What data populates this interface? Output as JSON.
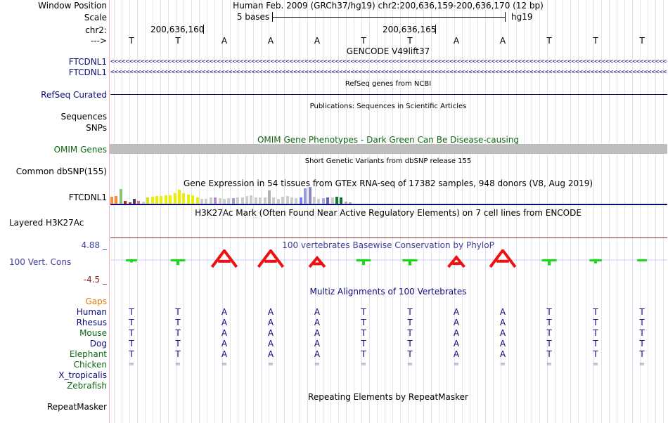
{
  "header": {
    "window_position_label": "Window Position",
    "scale_label": "Scale",
    "chrom_label": "chr2:",
    "strand_label": "--->",
    "assembly_title": "Human Feb. 2009 (GRCh37/hg19)   chr2:200,636,159-200,636,170 (12 bp)",
    "scale_text": "5 bases",
    "scale_db": "hg19",
    "pos_tick_1": "200,636,160",
    "pos_tick_2": "200,636,165"
  },
  "bases": [
    "T",
    "T",
    "A",
    "A",
    "A",
    "T",
    "T",
    "A",
    "A",
    "T",
    "T",
    "T"
  ],
  "tracks": {
    "gencode_title": "GENCODE V49lift37",
    "gencode_gene_1": "FTCDNL1",
    "gencode_gene_2": "FTCDNL1",
    "arrows": "<<<<<<<<<<<<<<<<<<<<<<<<<<<<<<<<<<<<<<<<<<<<<<<<<<<<<<<<<<<<<<<<<<<<<<<<<<<<<<<<<<<<<<<<<<<<<<<<<<<<<<<<<<<<<<<<<<<<<<<<<<<<<<<<<<<<<<<<<<<<<<<<<<<<<<<<<<<<<<<<<<<<<<<",
    "refseq_title": "RefSeq genes from NCBI",
    "refseq_label": "RefSeq Curated",
    "pubs_title": "Publications: Sequences in Scientific Articles",
    "sequences_label": "Sequences",
    "snps_label": "SNPs",
    "omim_title": "OMIM Gene Phenotypes - Dark Green Can Be Disease-causing",
    "omim_label": "OMIM Genes",
    "dbsnp_title": "Short Genetic Variants from dbSNP release 155",
    "dbsnp_label": "Common dbSNP(155)",
    "gtex_title": "Gene Expression in 54 tissues from GTEx RNA-seq of 17382 samples, 948 donors (V8, Aug 2019)",
    "gtex_label": "FTCDNL1",
    "h3k27_title": "H3K27Ac Mark (Often Found Near Active Regulatory Elements) on 7 cell lines from ENCODE",
    "h3k27_label": "Layered H3K27Ac",
    "phylop_title": "100 vertebrates Basewise Conservation by PhyloP",
    "phylop_label": "100 Vert. Cons",
    "phylop_max": "4.88 _",
    "phylop_min": "-4.5 _",
    "multiz_title": "Multiz Alignments of 100 Vertebrates",
    "gaps_label": "Gaps",
    "repeat_title": "Repeating Elements by RepeatMasker",
    "repeat_label": "RepeatMasker"
  },
  "gtex_values": [
    9,
    10,
    19,
    4,
    2,
    6,
    4,
    3,
    8,
    9,
    10,
    10,
    11,
    11,
    14,
    18,
    14,
    12,
    11,
    8,
    6,
    6,
    8,
    8,
    7,
    6,
    7,
    7,
    8,
    8,
    10,
    11,
    8,
    8,
    8,
    17,
    8,
    6,
    9,
    10,
    8,
    7,
    8,
    20,
    22,
    9,
    6,
    7,
    8,
    8,
    9,
    8,
    3,
    2
  ],
  "gtex_colors": [
    "#ff8c33",
    "#ff8c33",
    "#88c278",
    "#bb2222",
    "#bb2222",
    "#444466",
    "#ee6688",
    "#cccccc",
    "#dddd22",
    "#eeee00",
    "#eeee00",
    "#eeee00",
    "#eeee00",
    "#eeee00",
    "#eeee00",
    "#eeee00",
    "#eeee00",
    "#eeee00",
    "#eeee00",
    "#eeee00",
    "#cccccc",
    "#cccccc",
    "#cccccc",
    "#b090cc",
    "#cccccc",
    "#cccccc",
    "#cccccc",
    "#a0a0c8",
    "#cccccc",
    "#cccccc",
    "#cccccc",
    "#cccccc",
    "#cccccc",
    "#cccccc",
    "#cccccc",
    "#b0b0b0",
    "#cccccc",
    "#cccccc",
    "#cccccc",
    "#cccccc",
    "#cccccc",
    "#cccccc",
    "#7777ff",
    "#9999dd",
    "#8888cc",
    "#cccccc",
    "#cccccc",
    "#aaaaee",
    "#6666aa",
    "#cccccc",
    "#117733",
    "#117733",
    "#cc99cc",
    "#aaaaaa"
  ],
  "phylop_scores": [
    1.1,
    2.0,
    4.7,
    4.7,
    2.2,
    2.0,
    2.1,
    2.4,
    4.8,
    2.1,
    1.4,
    0.7
  ],
  "phylop_colors": [
    "#11dd11",
    "#11dd11",
    "#ee1111",
    "#ee1111",
    "#ee1111",
    "#11dd11",
    "#11dd11",
    "#ee1111",
    "#ee1111",
    "#11dd11",
    "#11dd11",
    "#11dd11"
  ],
  "species": [
    {
      "name": "Human",
      "row": "T T A A A T T A A T T T",
      "color": "#0c0c78"
    },
    {
      "name": "Rhesus",
      "row": "T T A A A T T A A T T T",
      "color": "#0c0c78"
    },
    {
      "name": "Mouse",
      "row": "T T A A A T T A A T T T",
      "color": "#116611"
    },
    {
      "name": "Dog",
      "row": "T T A A A T T A A T T T",
      "color": "#0c0c78"
    },
    {
      "name": "Elephant",
      "row": "T T A A A T T A A T T T",
      "color": "#116611"
    },
    {
      "name": "Chicken",
      "row": "= = = = = = = = = = = =",
      "color": "#116611"
    },
    {
      "name": "X_tropicalis",
      "row": "",
      "color": "#0c0c78"
    },
    {
      "name": "Zebrafish",
      "row": "",
      "color": "#116611"
    }
  ],
  "colors": {
    "gene_blue": "#0c0c78",
    "label_green": "#116611",
    "gaps_orange": "#e07a00",
    "phylop_title": "#3e3e9a",
    "phylop_min": "#8c2a2a",
    "omim_grey": "#bebebe",
    "h3k27_line": "#8c2a2a"
  }
}
